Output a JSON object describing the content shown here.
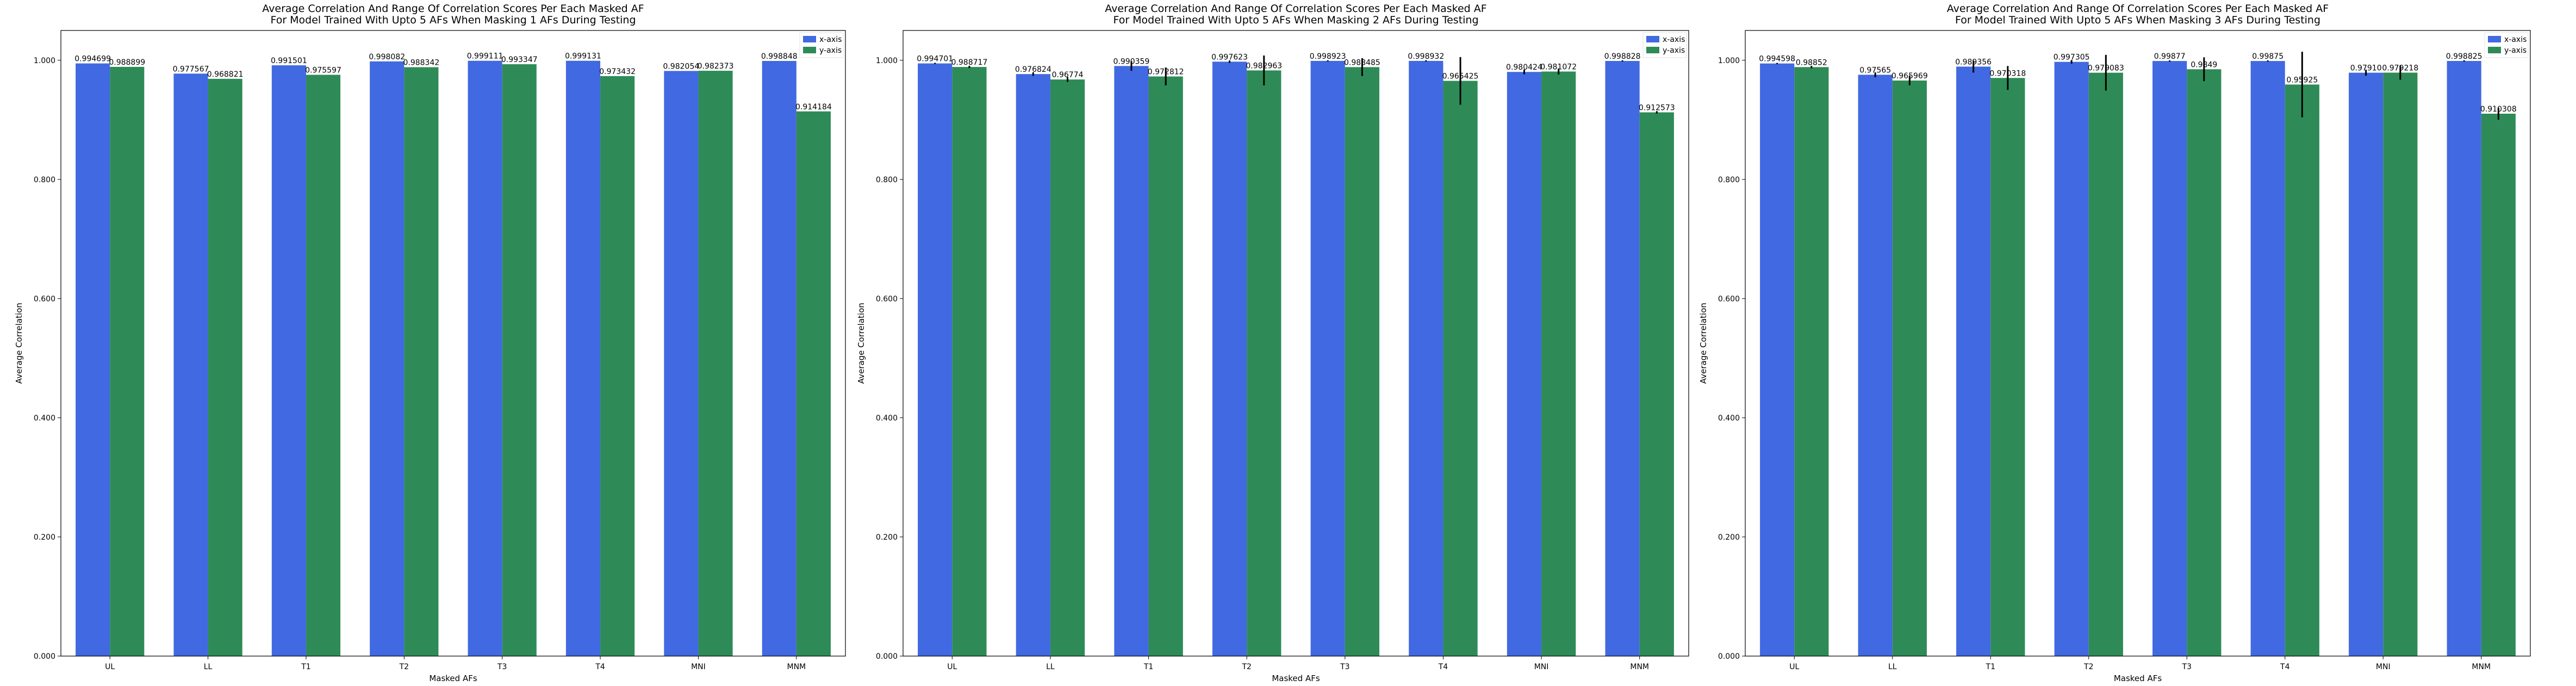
{
  "chart_data": [
    {
      "type": "bar",
      "title": "Average Correlation And Range Of Correlation Scores Per Each Masked AF\nFor Model Trained With Upto 5 AFs When Masking 1 AFs During Testing",
      "xlabel": "Masked AFs",
      "ylabel": "Average Correlation",
      "categories": [
        "UL",
        "LL",
        "T1",
        "T2",
        "T3",
        "T4",
        "MNI",
        "MNM"
      ],
      "ylim": [
        0,
        1.05
      ],
      "yticks": [
        "0.000",
        "0.200",
        "0.400",
        "0.600",
        "0.800",
        "1.000"
      ],
      "legend_position": "top-right",
      "grid": false,
      "series": [
        {
          "name": "x-axis",
          "color": "#4169e1",
          "values": [
            0.994699,
            0.977567,
            0.991501,
            0.998082,
            0.999111,
            0.999131,
            0.982054,
            0.998848
          ],
          "labels": [
            "0.994699",
            "0.977567",
            "0.991501",
            "0.998082",
            "0.999111",
            "0.999131",
            "0.982054",
            "0.998848"
          ],
          "error_low": [
            0,
            0,
            0,
            0,
            0,
            0,
            0,
            0
          ],
          "error_high": [
            0,
            0,
            0,
            0,
            0,
            0,
            0,
            0
          ]
        },
        {
          "name": "y-axis",
          "color": "#2e8b57",
          "values": [
            0.988899,
            0.968821,
            0.975597,
            0.988342,
            0.993347,
            0.973432,
            0.982373,
            0.914184
          ],
          "labels": [
            "0.988899",
            "0.968821",
            "0.975597",
            "0.988342",
            "0.993347",
            "0.973432",
            "0.982373",
            "0.914184"
          ],
          "error_low": [
            0,
            0,
            0,
            0,
            0,
            0,
            0,
            0
          ],
          "error_high": [
            0,
            0,
            0,
            0,
            0,
            0,
            0,
            0
          ]
        }
      ]
    },
    {
      "type": "bar",
      "title": "Average Correlation And Range Of Correlation Scores Per Each Masked AF\nFor Model Trained With Upto 5 AFs When Masking 2 AFs During Testing",
      "xlabel": "Masked AFs",
      "ylabel": "Average Correlation",
      "categories": [
        "UL",
        "LL",
        "T1",
        "T2",
        "T3",
        "T4",
        "MNI",
        "MNM"
      ],
      "ylim": [
        0,
        1.05
      ],
      "yticks": [
        "0.000",
        "0.200",
        "0.400",
        "0.600",
        "0.800",
        "1.000"
      ],
      "legend_position": "top-right",
      "grid": false,
      "series": [
        {
          "name": "x-axis",
          "color": "#4169e1",
          "values": [
            0.994701,
            0.976824,
            0.990359,
            0.997623,
            0.998923,
            0.998932,
            0.980424,
            0.998828
          ],
          "labels": [
            "0.994701",
            "0.976824",
            "0.990359",
            "0.997623",
            "0.998923",
            "0.998932",
            "0.980424",
            "0.998828"
          ],
          "error_low": [
            0.001,
            0.003,
            0.008,
            0.002,
            0.001,
            0.001,
            0.004,
            0.001
          ],
          "error_high": [
            0.001,
            0.003,
            0.008,
            0.002,
            0.001,
            0.001,
            0.004,
            0.001
          ]
        },
        {
          "name": "y-axis",
          "color": "#2e8b57",
          "values": [
            0.988717,
            0.96774,
            0.972812,
            0.982963,
            0.988485,
            0.965425,
            0.981072,
            0.912573
          ],
          "labels": [
            "0.988717",
            "0.96774",
            "0.972812",
            "0.982963",
            "0.988485",
            "0.965425",
            "0.981072",
            "0.912573"
          ],
          "error_low": [
            0.002,
            0.004,
            0.015,
            0.025,
            0.015,
            0.04,
            0.005,
            0.002
          ],
          "error_high": [
            0.002,
            0.004,
            0.015,
            0.025,
            0.015,
            0.04,
            0.005,
            0.002
          ]
        }
      ]
    },
    {
      "type": "bar",
      "title": "Average Correlation And Range Of Correlation Scores Per Each Masked AF\nFor Model Trained With Upto 5 AFs When Masking 3 AFs During Testing",
      "xlabel": "Masked AFs",
      "ylabel": "Average Correlation",
      "categories": [
        "UL",
        "LL",
        "T1",
        "T2",
        "T3",
        "T4",
        "MNI",
        "MNM"
      ],
      "ylim": [
        0,
        1.05
      ],
      "yticks": [
        "0.000",
        "0.200",
        "0.400",
        "0.600",
        "0.800",
        "1.000"
      ],
      "legend_position": "top-right",
      "grid": false,
      "series": [
        {
          "name": "x-axis",
          "color": "#4169e1",
          "values": [
            0.994598,
            0.97565,
            0.989356,
            0.997305,
            0.99877,
            0.99875,
            0.9791,
            0.998825
          ],
          "labels": [
            "0.994598",
            "0.97565",
            "0.989356",
            "0.997305",
            "0.99877",
            "0.99875",
            "0.97910",
            "0.998825"
          ],
          "error_low": [
            0.001,
            0.004,
            0.01,
            0.003,
            0.001,
            0.001,
            0.005,
            0.001
          ],
          "error_high": [
            0.001,
            0.004,
            0.01,
            0.003,
            0.001,
            0.001,
            0.005,
            0.001
          ]
        },
        {
          "name": "y-axis",
          "color": "#2e8b57",
          "values": [
            0.98852,
            0.965969,
            0.970318,
            0.979083,
            0.9849,
            0.95925,
            0.979218,
            0.910308
          ],
          "labels": [
            "0.98852",
            "0.965969",
            "0.970318",
            "0.979083",
            "0.9849",
            "0.95925",
            "0.979218",
            "0.910308"
          ],
          "error_low": [
            0.002,
            0.008,
            0.02,
            0.03,
            0.02,
            0.055,
            0.012,
            0.01
          ],
          "error_high": [
            0.002,
            0.008,
            0.02,
            0.03,
            0.02,
            0.055,
            0.012,
            0.01
          ]
        }
      ]
    }
  ]
}
